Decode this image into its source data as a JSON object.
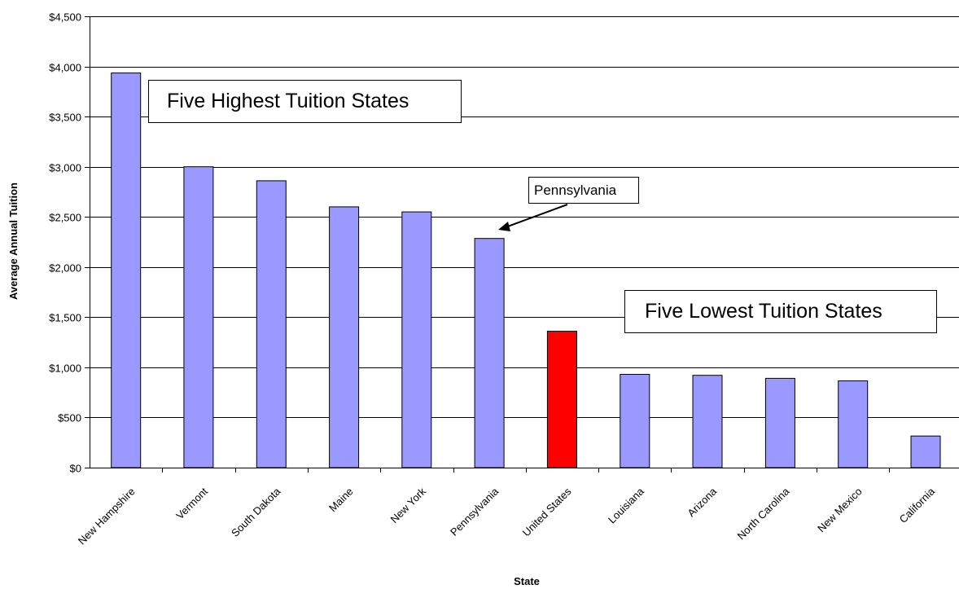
{
  "chart_data": {
    "type": "bar",
    "title": "",
    "xlabel": "State",
    "ylabel": "Average Annual Tuition",
    "ylim": [
      0,
      4500
    ],
    "yticks": [
      0,
      500,
      1000,
      1500,
      2000,
      2500,
      3000,
      3500,
      4000,
      4500
    ],
    "ytick_labels": [
      "$0",
      "$500",
      "$1,000",
      "$1,500",
      "$2,000",
      "$2,500",
      "$3,000",
      "$3,500",
      "$4,000",
      "$4,500"
    ],
    "grid": true,
    "legend": "none",
    "categories": [
      "New Hampshire",
      "Vermont",
      "South Dakota",
      "Maine",
      "New York",
      "Pennsylvania",
      "United States",
      "Louisiana",
      "Arizona",
      "North Carolina",
      "New Mexico",
      "California"
    ],
    "values": [
      3935,
      3000,
      2860,
      2600,
      2550,
      2285,
      1360,
      930,
      920,
      890,
      865,
      315
    ],
    "colors": {
      "default_bar": "#9999FF",
      "highlight_bar": "#FF0000",
      "highlight_category": "United States"
    },
    "annotations": {
      "highest": "Five Highest Tuition States",
      "lowest": "Five Lowest Tuition States",
      "pennsylvania": "Pennsylvania"
    }
  }
}
